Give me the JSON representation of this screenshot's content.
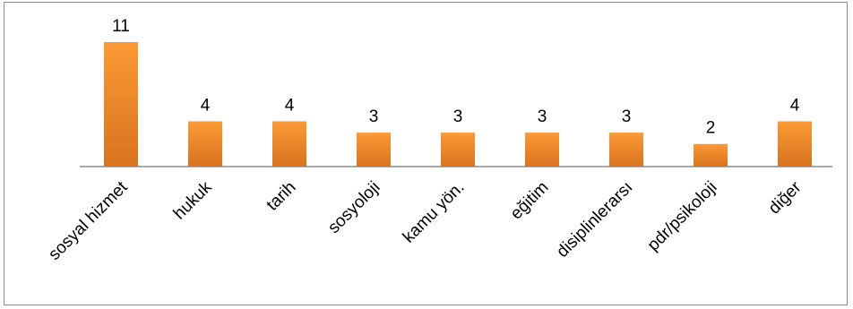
{
  "chart_data": {
    "type": "bar",
    "categories": [
      "sosyal hizmet",
      "hukuk",
      "tarih",
      "sosyoloji",
      "kamu yön.",
      "eğitim",
      "disiplinlerarsı",
      "pdr/psikoloji",
      "diğer"
    ],
    "values": [
      11,
      4,
      4,
      3,
      3,
      3,
      3,
      2,
      4
    ],
    "data_labels": [
      "11",
      "4",
      "4",
      "3",
      "3",
      "3",
      "3",
      "2",
      "4"
    ],
    "title": "",
    "xlabel": "",
    "ylabel": "",
    "ylim": [
      0,
      11
    ],
    "grid": false,
    "legend": "none",
    "colors": {
      "bar_top": "#fb9a35",
      "bar_bottom": "#d8731f",
      "axis": "#8c8c8c"
    }
  }
}
